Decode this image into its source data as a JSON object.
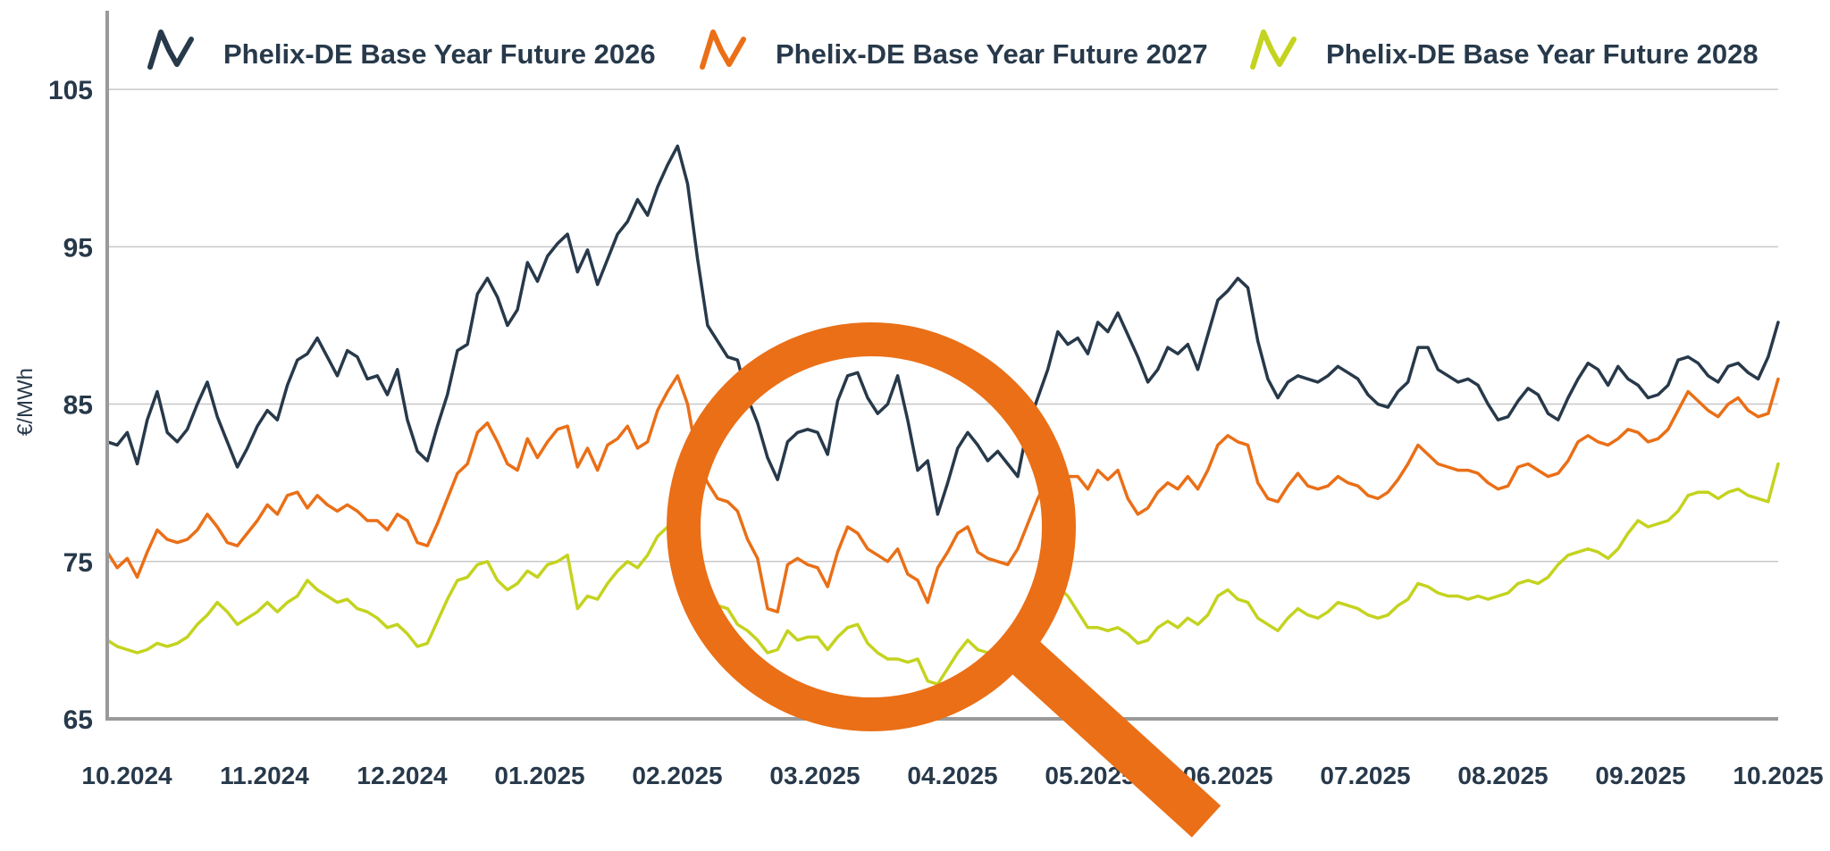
{
  "chart_data": {
    "type": "line",
    "ylabel": "€/MWh",
    "xlabel": "",
    "ylim": [
      65,
      110
    ],
    "yticks": [
      65,
      75,
      85,
      95,
      105
    ],
    "xticks": [
      "10.2024",
      "11.2024",
      "12.2024",
      "01.2025",
      "02.2025",
      "03.2025",
      "04.2025",
      "05.2025",
      "06.2025",
      "07.2025",
      "08.2025",
      "09.2025",
      "10.2025"
    ],
    "grid": "horizontal",
    "legend_position": "top",
    "series": [
      {
        "name": "Phelix-DE Base Year Future 2026",
        "color": "#27394a",
        "values": [
          82.6,
          82.4,
          83.2,
          81.2,
          84.0,
          85.8,
          83.2,
          82.6,
          83.4,
          85.0,
          86.4,
          84.2,
          82.6,
          81.0,
          82.2,
          83.6,
          84.6,
          84.0,
          86.2,
          87.8,
          88.2,
          89.2,
          88.0,
          86.8,
          88.4,
          88.0,
          86.6,
          86.8,
          85.6,
          87.2,
          84.0,
          82.0,
          81.4,
          83.6,
          85.6,
          88.4,
          88.8,
          92.0,
          93.0,
          91.8,
          90.0,
          91.0,
          94.0,
          92.8,
          94.4,
          95.2,
          95.8,
          93.4,
          94.8,
          92.6,
          94.2,
          95.8,
          96.6,
          98.0,
          97.0,
          98.8,
          100.2,
          101.4,
          99.0,
          94.2,
          90.0,
          89.0,
          88.0,
          87.8,
          85.4,
          83.8,
          81.6,
          80.2,
          82.6,
          83.2,
          83.4,
          83.2,
          81.8,
          85.2,
          86.8,
          87.0,
          85.4,
          84.4,
          85.0,
          86.8,
          84.0,
          80.8,
          81.4,
          78.0,
          80.0,
          82.2,
          83.2,
          82.4,
          81.4,
          82.0,
          81.2,
          80.4,
          83.6,
          85.4,
          87.2,
          89.6,
          88.8,
          89.2,
          88.2,
          90.2,
          89.6,
          90.8,
          89.4,
          88.0,
          86.4,
          87.2,
          88.6,
          88.2,
          88.8,
          87.2,
          89.4,
          91.6,
          92.2,
          93.0,
          92.4,
          89.0,
          86.6,
          85.4,
          86.4,
          86.8,
          86.6,
          86.4,
          86.8,
          87.4,
          87.0,
          86.6,
          85.6,
          85.0,
          84.8,
          85.8,
          86.4,
          88.6,
          88.6,
          87.2,
          86.8,
          86.4,
          86.6,
          86.2,
          85.0,
          84.0,
          84.2,
          85.2,
          86.0,
          85.6,
          84.4,
          84.0,
          85.4,
          86.6,
          87.6,
          87.2,
          86.2,
          87.4,
          86.6,
          86.2,
          85.4,
          85.6,
          86.2,
          87.8,
          88.0,
          87.6,
          86.8,
          86.4,
          87.4,
          87.6,
          87.0,
          86.6,
          88.0,
          90.2
        ]
      },
      {
        "name": "Phelix-DE Base Year Future 2027",
        "color": "#ea6f17",
        "values": [
          75.6,
          74.6,
          75.2,
          74.0,
          75.6,
          77.0,
          76.4,
          76.2,
          76.4,
          77.0,
          78.0,
          77.2,
          76.2,
          76.0,
          76.8,
          77.6,
          78.6,
          78.0,
          79.2,
          79.4,
          78.4,
          79.2,
          78.6,
          78.2,
          78.6,
          78.2,
          77.6,
          77.6,
          77.0,
          78.0,
          77.6,
          76.2,
          76.0,
          77.4,
          79.0,
          80.6,
          81.2,
          83.2,
          83.8,
          82.6,
          81.2,
          80.8,
          82.8,
          81.6,
          82.6,
          83.4,
          83.6,
          81.0,
          82.2,
          80.8,
          82.4,
          82.8,
          83.6,
          82.2,
          82.6,
          84.6,
          85.8,
          86.8,
          85.0,
          81.4,
          80.0,
          79.0,
          78.8,
          78.2,
          76.4,
          75.2,
          72.0,
          71.8,
          74.8,
          75.2,
          74.8,
          74.6,
          73.4,
          75.6,
          77.2,
          76.8,
          75.8,
          75.4,
          75.0,
          75.8,
          74.2,
          73.8,
          72.4,
          74.6,
          75.6,
          76.8,
          77.2,
          75.6,
          75.2,
          75.0,
          74.8,
          75.8,
          77.4,
          79.0,
          80.2,
          81.2,
          80.4,
          80.4,
          79.6,
          80.8,
          80.2,
          80.8,
          79.0,
          78.0,
          78.4,
          79.4,
          80.0,
          79.6,
          80.4,
          79.6,
          80.8,
          82.4,
          83.0,
          82.6,
          82.4,
          80.0,
          79.0,
          78.8,
          79.8,
          80.6,
          79.8,
          79.6,
          79.8,
          80.4,
          80.0,
          79.8,
          79.2,
          79.0,
          79.4,
          80.2,
          81.2,
          82.4,
          81.8,
          81.2,
          81.0,
          80.8,
          80.8,
          80.6,
          80.0,
          79.6,
          79.8,
          81.0,
          81.2,
          80.8,
          80.4,
          80.6,
          81.4,
          82.6,
          83.0,
          82.6,
          82.4,
          82.8,
          83.4,
          83.2,
          82.6,
          82.8,
          83.4,
          84.6,
          85.8,
          85.2,
          84.6,
          84.2,
          85.0,
          85.4,
          84.6,
          84.2,
          84.4,
          86.6
        ]
      },
      {
        "name": "Phelix-DE Base Year Future 2028",
        "color": "#c4d31f",
        "values": [
          70.0,
          69.6,
          69.4,
          69.2,
          69.4,
          69.8,
          69.6,
          69.8,
          70.2,
          71.0,
          71.6,
          72.4,
          71.8,
          71.0,
          71.4,
          71.8,
          72.4,
          71.8,
          72.4,
          72.8,
          73.8,
          73.2,
          72.8,
          72.4,
          72.6,
          72.0,
          71.8,
          71.4,
          70.8,
          71.0,
          70.4,
          69.6,
          69.8,
          71.2,
          72.6,
          73.8,
          74.0,
          74.8,
          75.0,
          73.8,
          73.2,
          73.6,
          74.4,
          74.0,
          74.8,
          75.0,
          75.4,
          72.0,
          72.8,
          72.6,
          73.6,
          74.4,
          75.0,
          74.6,
          75.4,
          76.6,
          77.2,
          77.0,
          75.8,
          73.4,
          73.0,
          72.2,
          72.0,
          71.0,
          70.6,
          70.0,
          69.2,
          69.4,
          70.6,
          70.0,
          70.2,
          70.2,
          69.4,
          70.2,
          70.8,
          71.0,
          69.8,
          69.2,
          68.8,
          68.8,
          68.6,
          68.8,
          67.4,
          67.2,
          68.2,
          69.2,
          70.0,
          69.4,
          69.2,
          69.4,
          68.8,
          69.4,
          70.4,
          71.6,
          72.4,
          73.4,
          72.8,
          71.8,
          70.8,
          70.8,
          70.6,
          70.8,
          70.4,
          69.8,
          70.0,
          70.8,
          71.2,
          70.8,
          71.4,
          71.0,
          71.6,
          72.8,
          73.2,
          72.6,
          72.4,
          71.4,
          71.0,
          70.6,
          71.4,
          72.0,
          71.6,
          71.4,
          71.8,
          72.4,
          72.2,
          72.0,
          71.6,
          71.4,
          71.6,
          72.2,
          72.6,
          73.6,
          73.4,
          73.0,
          72.8,
          72.8,
          72.6,
          72.8,
          72.6,
          72.8,
          73.0,
          73.6,
          73.8,
          73.6,
          74.0,
          74.8,
          75.4,
          75.6,
          75.8,
          75.6,
          75.2,
          75.8,
          76.8,
          77.6,
          77.2,
          77.4,
          77.6,
          78.2,
          79.2,
          79.4,
          79.4,
          79.0,
          79.4,
          79.6,
          79.2,
          79.0,
          78.8,
          81.2
        ]
      }
    ]
  }
}
